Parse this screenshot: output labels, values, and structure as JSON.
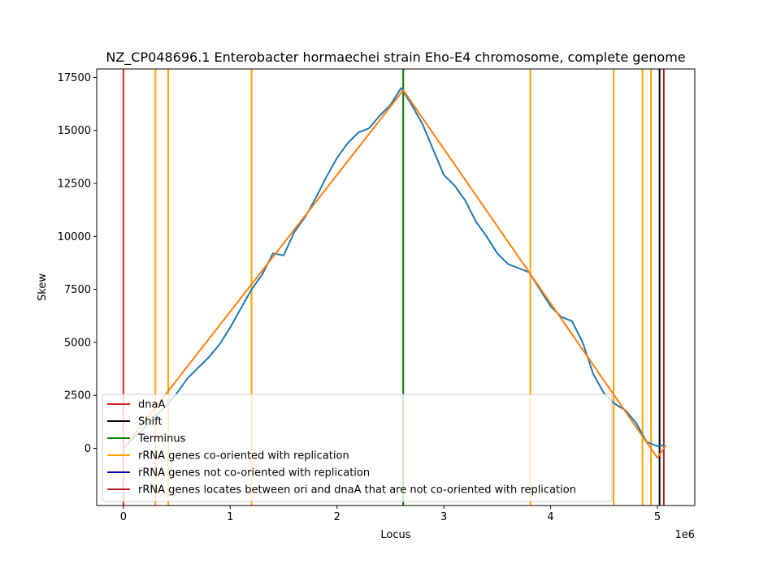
{
  "chart_data": {
    "type": "line",
    "title": "NZ_CP048696.1 Enterobacter hormaechei strain Eho-E4 chromosome, complete genome",
    "xlabel": "Locus",
    "ylabel": "Skew",
    "x_multiplier_label": "1e6",
    "xlim": [
      -250000,
      5350000
    ],
    "ylim": [
      -2700,
      17900
    ],
    "x_ticks": [
      0,
      1,
      2,
      3,
      4,
      5
    ],
    "y_ticks": [
      0,
      2500,
      5000,
      7500,
      10000,
      12500,
      15000,
      17500
    ],
    "legend_position": "lower-left",
    "legend": [
      {
        "label": "dnaA",
        "color": "#d62728"
      },
      {
        "label": "Shift",
        "color": "#000000"
      },
      {
        "label": "Terminus",
        "color": "#008000"
      },
      {
        "label": "rRNA genes co-oriented with replication",
        "color": "#ffa500"
      },
      {
        "label": "rRNA genes not co-oriented with replication",
        "color": "#0000aa"
      },
      {
        "label": "rRNA genes locates between ori and dnaA that are not co-oriented with replication",
        "color": "#b22222"
      }
    ],
    "vertical_lines": [
      {
        "type": "dnaA",
        "x": 0,
        "color": "#d62728"
      },
      {
        "type": "rRNA-co",
        "x": 300000,
        "color": "#ffa500"
      },
      {
        "type": "rRNA-co",
        "x": 420000,
        "color": "#ffa500"
      },
      {
        "type": "rRNA-co",
        "x": 1200000,
        "color": "#ffa500"
      },
      {
        "type": "Terminus",
        "x": 2620000,
        "color": "#008000"
      },
      {
        "type": "rRNA-co",
        "x": 3810000,
        "color": "#ffa500"
      },
      {
        "type": "rRNA-co",
        "x": 4590000,
        "color": "#ffa500"
      },
      {
        "type": "rRNA-co",
        "x": 4860000,
        "color": "#ffa500"
      },
      {
        "type": "rRNA-co",
        "x": 4940000,
        "color": "#ffa500"
      },
      {
        "type": "Shift",
        "x": 5020000,
        "color": "#000000"
      },
      {
        "type": "rRNA-between",
        "x": 5060000,
        "color": "#b22222"
      }
    ],
    "series": [
      {
        "color": "#1f77b4",
        "x": [
          0,
          100000,
          200000,
          300000,
          400000,
          500000,
          600000,
          700000,
          800000,
          900000,
          1000000,
          1100000,
          1200000,
          1300000,
          1400000,
          1500000,
          1600000,
          1700000,
          1800000,
          1900000,
          2000000,
          2100000,
          2200000,
          2300000,
          2400000,
          2500000,
          2600000,
          2700000,
          2800000,
          2900000,
          3000000,
          3100000,
          3200000,
          3300000,
          3400000,
          3500000,
          3600000,
          3700000,
          3800000,
          3900000,
          4000000,
          4100000,
          4200000,
          4300000,
          4400000,
          4500000,
          4600000,
          4700000,
          4800000,
          4900000,
          5000000,
          5070000
        ],
        "values": [
          0,
          500,
          1000,
          1500,
          2000,
          2600,
          3300,
          3800,
          4300,
          4900,
          5700,
          6600,
          7500,
          8200,
          9200,
          9100,
          10200,
          10900,
          11800,
          12800,
          13700,
          14400,
          14900,
          15100,
          15700,
          16200,
          17000,
          16200,
          15300,
          14100,
          12900,
          12400,
          11700,
          10700,
          10000,
          9200,
          8700,
          8500,
          8300,
          7500,
          6700,
          6200,
          6000,
          5000,
          3500,
          2600,
          2100,
          1800,
          1200,
          300,
          100,
          150
        ]
      },
      {
        "color": "#ff7f0e",
        "x": [
          0,
          2620000,
          5000000,
          5080000
        ],
        "values": [
          0,
          16900,
          -450,
          150
        ]
      }
    ]
  }
}
